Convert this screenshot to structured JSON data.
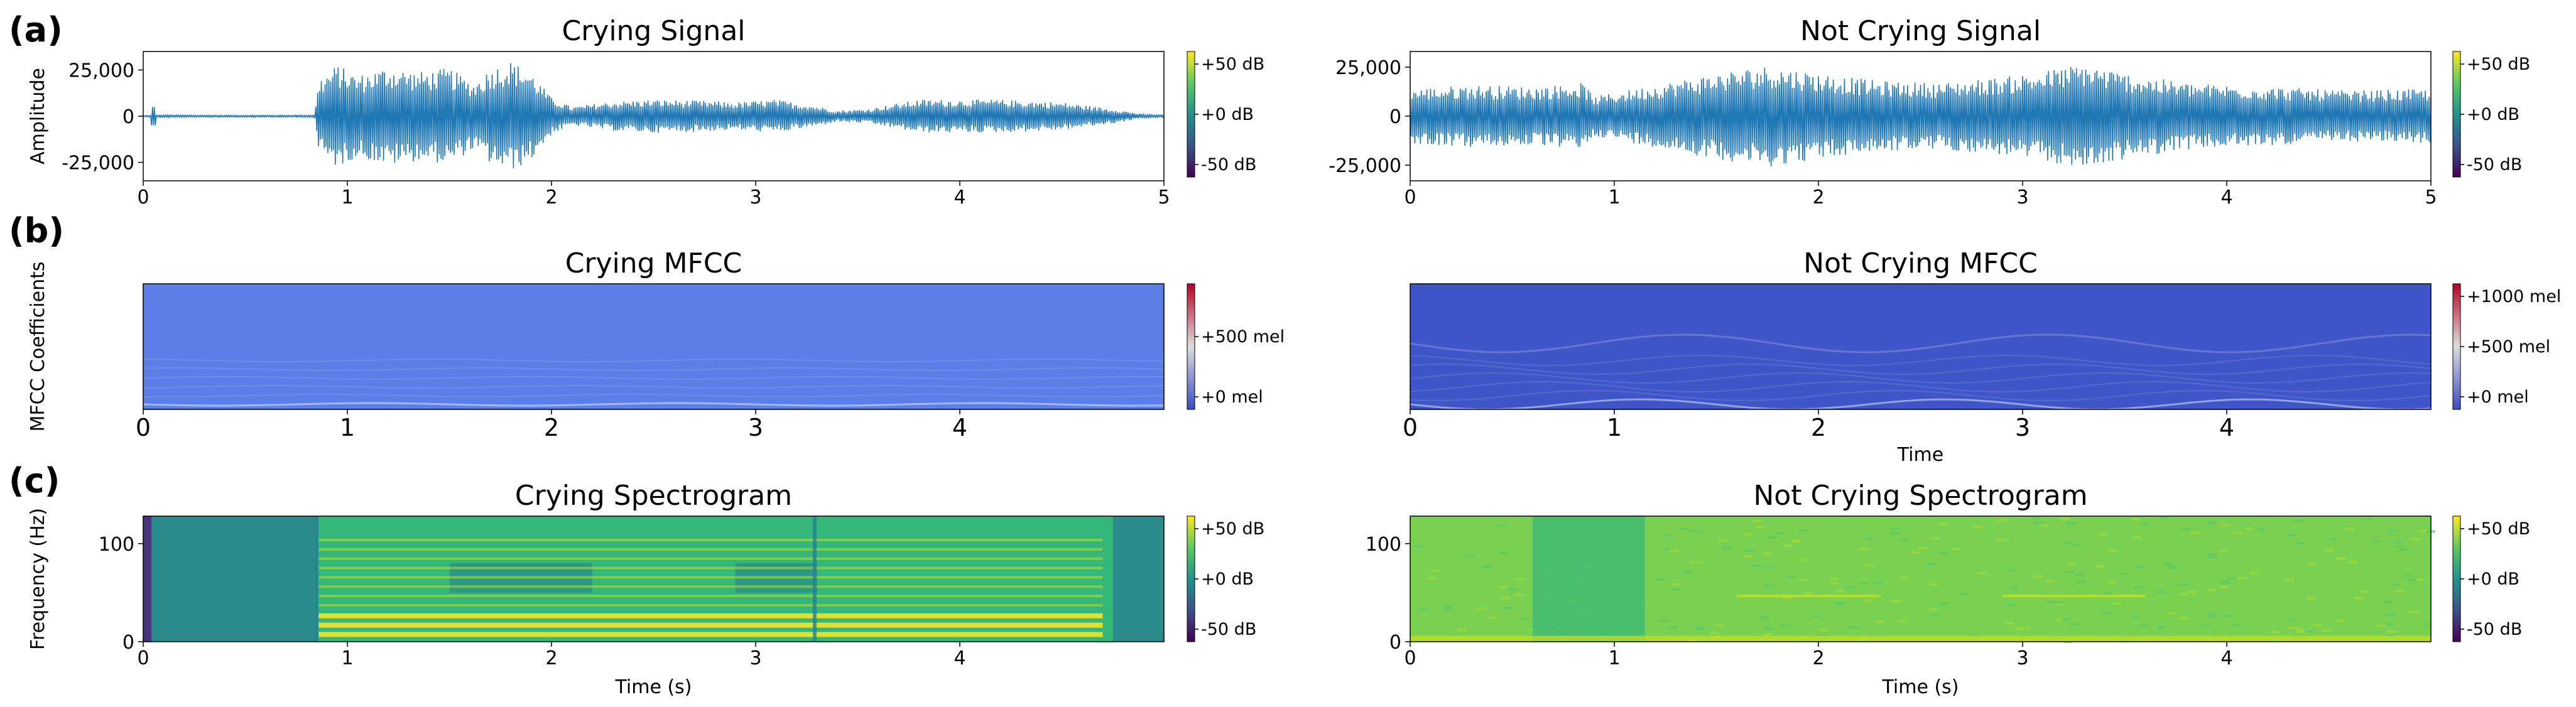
{
  "panels": [
    "(a)",
    "(b)",
    "(c)"
  ],
  "chart_data": [
    {
      "id": "crying-signal",
      "type": "line",
      "title": "Crying Signal",
      "xlabel": "",
      "ylabel": "Amplitude",
      "xlim": [
        0,
        5
      ],
      "ylim": [
        -35000,
        35000
      ],
      "xticks": [
        0,
        1,
        2,
        3,
        4,
        5
      ],
      "xticklabels": [
        "0",
        "1",
        "2",
        "3",
        "4",
        "5"
      ],
      "yticks": [
        25000,
        0,
        -25000
      ],
      "yticklabels": [
        "25,000",
        "0",
        "-25,000"
      ],
      "series": [
        {
          "name": "waveform",
          "color": "#1f77b4",
          "envelope": [
            [
              0.0,
              300
            ],
            [
              0.05,
              500
            ],
            [
              0.1,
              700
            ],
            [
              0.2,
              600
            ],
            [
              0.4,
              500
            ],
            [
              0.6,
              500
            ],
            [
              0.84,
              600
            ],
            [
              0.86,
              20000
            ],
            [
              0.95,
              28000
            ],
            [
              1.05,
              22000
            ],
            [
              1.2,
              27000
            ],
            [
              1.35,
              24000
            ],
            [
              1.5,
              26000
            ],
            [
              1.62,
              18000
            ],
            [
              1.7,
              26000
            ],
            [
              1.8,
              30000
            ],
            [
              1.9,
              24000
            ],
            [
              2.0,
              10000
            ],
            [
              2.1,
              5000
            ],
            [
              2.3,
              8000
            ],
            [
              2.5,
              9000
            ],
            [
              2.7,
              8500
            ],
            [
              2.9,
              7500
            ],
            [
              3.1,
              9000
            ],
            [
              3.3,
              5500
            ],
            [
              3.4,
              3000
            ],
            [
              3.55,
              4000
            ],
            [
              3.8,
              9000
            ],
            [
              4.2,
              9000
            ],
            [
              4.5,
              7500
            ],
            [
              4.75,
              4000
            ],
            [
              4.9,
              1000
            ],
            [
              5.0,
              600
            ]
          ]
        }
      ],
      "colorbar": {
        "cmap": "viridis",
        "ticklabels": [
          "+50 dB",
          "+0 dB",
          "-50 dB"
        ]
      }
    },
    {
      "id": "not-crying-signal",
      "type": "line",
      "title": "Not Crying Signal",
      "xlabel": "",
      "ylabel": "",
      "xlim": [
        0,
        5
      ],
      "ylim": [
        -33000,
        33000
      ],
      "xticks": [
        0,
        1,
        2,
        3,
        4,
        5
      ],
      "xticklabels": [
        "0",
        "1",
        "2",
        "3",
        "4",
        "5"
      ],
      "yticks": [
        25000,
        0,
        -25000
      ],
      "yticklabels": [
        "25,000",
        "0",
        "-25,000"
      ],
      "series": [
        {
          "name": "waveform",
          "color": "#1f77b4",
          "envelope": [
            [
              0.0,
              14000
            ],
            [
              0.3,
              16000
            ],
            [
              0.6,
              15000
            ],
            [
              0.85,
              17000
            ],
            [
              0.9,
              10000
            ],
            [
              1.0,
              12000
            ],
            [
              1.2,
              16000
            ],
            [
              1.5,
              22000
            ],
            [
              1.75,
              26000
            ],
            [
              2.0,
              22000
            ],
            [
              2.3,
              18000
            ],
            [
              2.6,
              17000
            ],
            [
              2.9,
              20000
            ],
            [
              3.1,
              23000
            ],
            [
              3.3,
              27000
            ],
            [
              3.5,
              22000
            ],
            [
              3.8,
              17000
            ],
            [
              4.2,
              15000
            ],
            [
              4.6,
              13000
            ],
            [
              5.0,
              14000
            ]
          ]
        }
      ],
      "colorbar": {
        "cmap": "viridis",
        "ticklabels": [
          "+50 dB",
          "+0 dB",
          "-50 dB"
        ]
      }
    },
    {
      "id": "crying-mfcc",
      "type": "heatmap",
      "title": "Crying MFCC",
      "xlabel": "",
      "ylabel": "MFCC Coefficients",
      "xlim": [
        0,
        5
      ],
      "xticks": [
        0,
        1,
        2,
        3,
        4
      ],
      "xticklabels": [
        "0",
        "1",
        "2",
        "3",
        "4"
      ],
      "fill_color": "#5b7fe6",
      "colorbar": {
        "cmap": "coolwarm",
        "ticklabels": [
          "+500  mel",
          "+0 mel"
        ]
      }
    },
    {
      "id": "not-crying-mfcc",
      "type": "heatmap",
      "title": "Not Crying MFCC",
      "xlabel": "Time",
      "ylabel": "",
      "xlim": [
        0,
        5
      ],
      "xticks": [
        0,
        1,
        2,
        3,
        4
      ],
      "xticklabels": [
        "0",
        "1",
        "2",
        "3",
        "4"
      ],
      "fill_color": "#3f55c8",
      "colorbar": {
        "cmap": "coolwarm",
        "ticklabels": [
          "+1000 mel",
          "+500 mel",
          "+0 mel"
        ]
      }
    },
    {
      "id": "crying-spectrogram",
      "type": "heatmap",
      "title": "Crying Spectrogram",
      "xlabel": "Time (s)",
      "ylabel": "Frequency (Hz)",
      "xlim": [
        0,
        5
      ],
      "ylim": [
        0,
        128
      ],
      "xticks": [
        0,
        1,
        2,
        3,
        4
      ],
      "xticklabels": [
        "0",
        "1",
        "2",
        "3",
        "4"
      ],
      "yticks": [
        0,
        100
      ],
      "yticklabels": [
        "0",
        "100"
      ],
      "colorbar": {
        "cmap": "viridis",
        "ticklabels": [
          "+50 dB",
          "+0 dB",
          "-50 dB"
        ]
      }
    },
    {
      "id": "not-crying-spectrogram",
      "type": "heatmap",
      "title": "Not Crying Spectrogram",
      "xlabel": "Time (s)",
      "ylabel": "",
      "xlim": [
        0,
        5
      ],
      "ylim": [
        0,
        128
      ],
      "xticks": [
        0,
        1,
        2,
        3,
        4
      ],
      "xticklabels": [
        "0",
        "1",
        "2",
        "3",
        "4"
      ],
      "yticks": [
        0,
        100
      ],
      "yticklabels": [
        "0",
        "100"
      ],
      "colorbar": {
        "cmap": "viridis",
        "ticklabels": [
          "+50 dB",
          "+0 dB",
          "-50 dB"
        ]
      }
    }
  ]
}
